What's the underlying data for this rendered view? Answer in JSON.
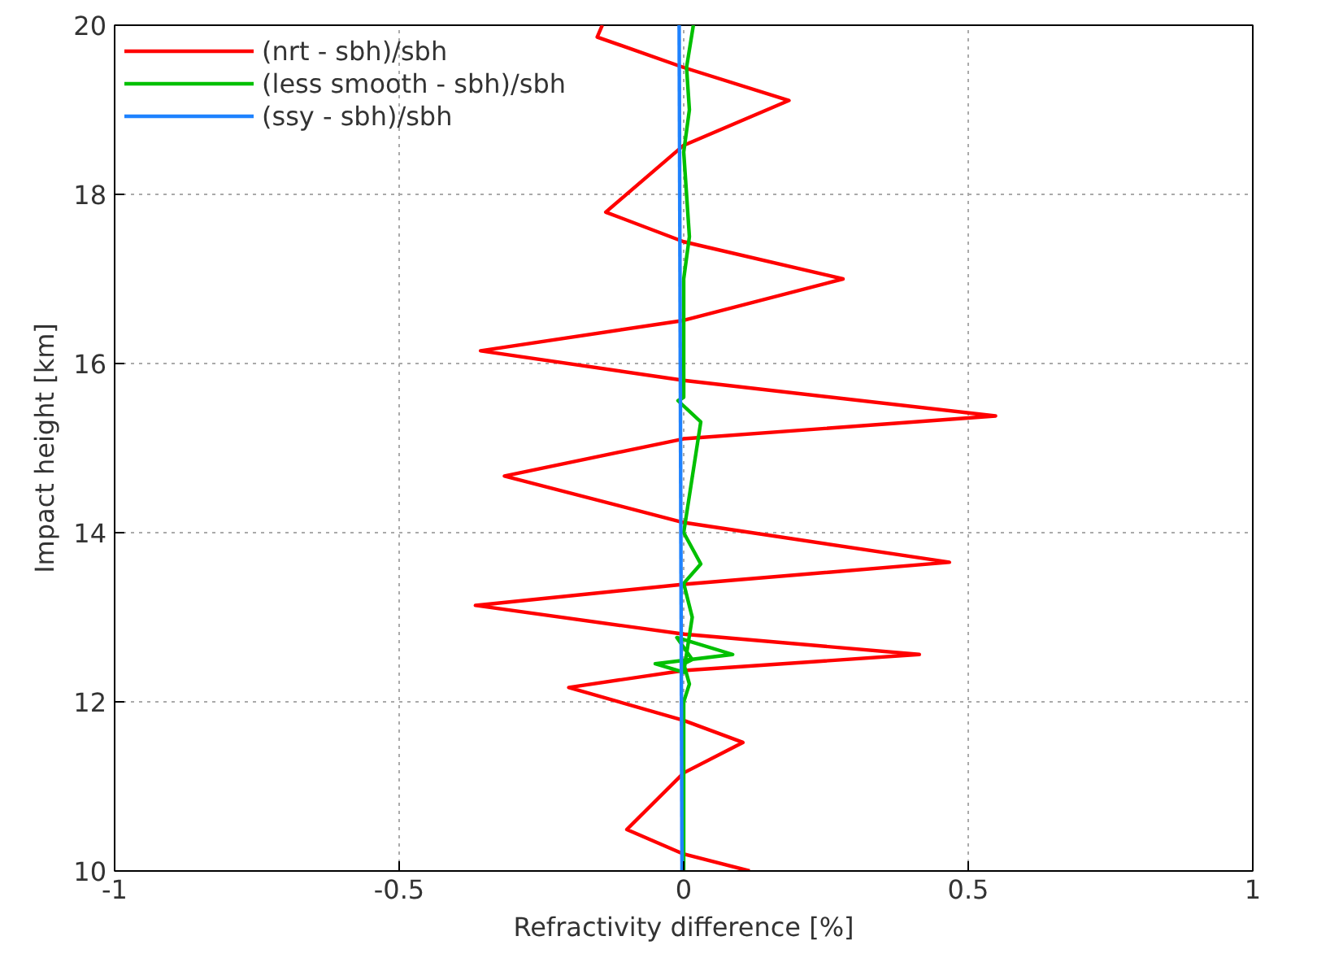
{
  "chart_data": {
    "type": "line",
    "xlabel": "Refractivity difference [%]",
    "ylabel": "Impact height [km]",
    "xlim": [
      -1,
      1
    ],
    "xticks": [
      -1,
      -0.5,
      0,
      0.5,
      1
    ],
    "ylim": [
      10,
      20
    ],
    "yticks": [
      10,
      12,
      14,
      16,
      18,
      20
    ],
    "grid": true,
    "legend": "top left",
    "line_style": "solid",
    "series": [
      {
        "name": "(nrt - sbh)/sbh",
        "color": "#ff0000",
        "x": [
          0.116,
          0,
          -0.1,
          0,
          0.104,
          0,
          -0.202,
          0,
          0.414,
          0,
          -0.366,
          0,
          0.467,
          0,
          -0.315,
          0,
          0.548,
          0,
          -0.357,
          0,
          0.28,
          0,
          -0.137,
          0,
          0.185,
          0,
          -0.152,
          -0.143
        ],
        "values": [
          10,
          10.2,
          10.49,
          11.16,
          11.52,
          11.78,
          12.17,
          12.37,
          12.56,
          12.8,
          13.14,
          13.39,
          13.65,
          14.12,
          14.67,
          15.11,
          15.38,
          15.8,
          16.15,
          16.51,
          17.0,
          17.44,
          17.79,
          18.58,
          19.11,
          19.5,
          19.86,
          20
        ]
      },
      {
        "name": "(less smooth - sbh)/sbh",
        "color": "#00c000",
        "x": [
          0.0,
          0.0,
          0.01,
          0.0,
          0.015,
          -0.012,
          0.086,
          -0.05,
          0.0,
          0.015,
          0.0,
          0.03,
          0.0,
          0.03,
          -0.01,
          0.0,
          0.0,
          0.0,
          0.01,
          0.0,
          0.01,
          0.005,
          0.017
        ],
        "values": [
          10,
          12.0,
          12.21,
          12.45,
          12.5,
          12.76,
          12.56,
          12.45,
          12.35,
          13.0,
          13.4,
          13.63,
          14.0,
          15.31,
          15.56,
          15.6,
          16,
          17,
          17.5,
          18.5,
          19,
          19.5,
          20
        ]
      },
      {
        "name": "(ssy - sbh)/sbh",
        "color": "#1e82ff",
        "x": [
          -0.003,
          -0.008
        ],
        "values": [
          10,
          20
        ]
      }
    ]
  }
}
